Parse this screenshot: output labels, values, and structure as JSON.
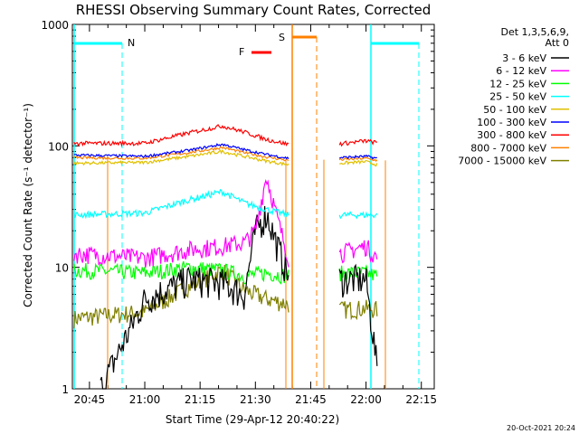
{
  "chart_data": {
    "type": "line",
    "title": "RHESSI Observing Summary Count Rates, Corrected",
    "xlabel": "Start Time (29-Apr-12 20:40:22)",
    "ylabel": "Corrected Count Rate (s⁻¹ detector⁻¹)",
    "yscale": "log",
    "ylim": [
      1,
      1000
    ],
    "xlim": [
      "20:40:22",
      "22:18:30"
    ],
    "x_ticks": [
      "20:45",
      "21:00",
      "21:15",
      "21:30",
      "21:45",
      "22:00",
      "22:15"
    ],
    "y_ticks": [
      "1",
      "10",
      "100",
      "1000"
    ],
    "legend_title": [
      "Det 1,3,5,6,9,",
      "Att 0"
    ],
    "legend_position": "right",
    "footer_date": "20-Oct-2021 20:24",
    "markers": [
      {
        "label": "N",
        "color": "#00ffff"
      },
      {
        "label": "F",
        "color": "#ff0000"
      },
      {
        "label": "S",
        "color": "#ff8000"
      }
    ],
    "series": [
      {
        "name": "3 - 6 keV",
        "color": "#000000",
        "values_seg1": [
          [
            20.8,
            1.0
          ],
          [
            21.0,
            5.5
          ],
          [
            21.2,
            8.0
          ],
          [
            21.35,
            7.5
          ],
          [
            21.45,
            6.0
          ],
          [
            21.5,
            20.0
          ],
          [
            21.55,
            28.0
          ],
          [
            21.6,
            15.0
          ],
          [
            21.65,
            8.5
          ]
        ],
        "values_seg2": [
          [
            21.88,
            8.0
          ],
          [
            22.0,
            8.0
          ],
          [
            22.05,
            1.5
          ]
        ]
      },
      {
        "name": "6 - 12 keV",
        "color": "#ff00ff",
        "values_seg1": [
          [
            20.68,
            13.0
          ],
          [
            21.0,
            12.0
          ],
          [
            21.2,
            14.0
          ],
          [
            21.35,
            15.0
          ],
          [
            21.45,
            16.0
          ],
          [
            21.5,
            20.0
          ],
          [
            21.55,
            57.0
          ],
          [
            21.6,
            25.0
          ],
          [
            21.65,
            12.0
          ]
        ],
        "values_seg2": [
          [
            21.88,
            13.0
          ],
          [
            22.0,
            15.0
          ],
          [
            22.05,
            12.0
          ]
        ]
      },
      {
        "name": "12 - 25 keV",
        "color": "#00ff00",
        "values_seg1": [
          [
            20.68,
            9.5
          ],
          [
            21.0,
            9.0
          ],
          [
            21.2,
            10.0
          ],
          [
            21.35,
            9.5
          ],
          [
            21.45,
            8.5
          ],
          [
            21.55,
            9.0
          ],
          [
            21.65,
            8.5
          ]
        ],
        "values_seg2": [
          [
            21.88,
            9.0
          ],
          [
            22.0,
            9.0
          ],
          [
            22.05,
            8.5
          ]
        ]
      },
      {
        "name": "25 - 50 keV",
        "color": "#00ffff",
        "values_seg1": [
          [
            20.68,
            27.0
          ],
          [
            21.0,
            28.0
          ],
          [
            21.2,
            36.0
          ],
          [
            21.35,
            42.0
          ],
          [
            21.45,
            34.0
          ],
          [
            21.55,
            30.0
          ],
          [
            21.65,
            27.0
          ]
        ],
        "values_seg2": [
          [
            21.88,
            27.0
          ],
          [
            22.0,
            27.0
          ],
          [
            22.05,
            27.0
          ]
        ]
      },
      {
        "name": "50 - 100 keV",
        "color": "#e0c000",
        "values_seg1": [
          [
            20.68,
            72.0
          ],
          [
            21.0,
            73.0
          ],
          [
            21.2,
            82.0
          ],
          [
            21.35,
            90.0
          ],
          [
            21.45,
            82.0
          ],
          [
            21.55,
            75.0
          ],
          [
            21.65,
            70.0
          ]
        ],
        "values_seg2": [
          [
            21.88,
            72.0
          ],
          [
            22.0,
            74.0
          ],
          [
            22.05,
            70.0
          ]
        ]
      },
      {
        "name": "100 - 300 keV",
        "color": "#0000ff",
        "values_seg1": [
          [
            20.68,
            84.0
          ],
          [
            21.0,
            82.0
          ],
          [
            21.2,
            92.0
          ],
          [
            21.35,
            103.0
          ],
          [
            21.45,
            93.0
          ],
          [
            21.55,
            85.0
          ],
          [
            21.65,
            79.0
          ]
        ],
        "values_seg2": [
          [
            21.88,
            80.0
          ],
          [
            22.0,
            82.0
          ],
          [
            22.05,
            79.0
          ]
        ]
      },
      {
        "name": "300 - 800 keV",
        "color": "#ff0000",
        "values_seg1": [
          [
            20.68,
            105.0
          ],
          [
            21.0,
            105.0
          ],
          [
            21.2,
            128.0
          ],
          [
            21.35,
            146.0
          ],
          [
            21.45,
            130.0
          ],
          [
            21.55,
            113.0
          ],
          [
            21.65,
            103.0
          ]
        ],
        "values_seg2": [
          [
            21.88,
            104.0
          ],
          [
            22.0,
            110.0
          ],
          [
            22.05,
            106.0
          ]
        ]
      },
      {
        "name": "800 - 7000 keV",
        "color": "#ff8000",
        "values_seg1": [
          [
            20.68,
            80.0
          ],
          [
            21.0,
            79.0
          ],
          [
            21.2,
            88.0
          ],
          [
            21.35,
            97.0
          ],
          [
            21.45,
            88.0
          ],
          [
            21.55,
            81.0
          ],
          [
            21.65,
            76.0
          ]
        ],
        "values_seg2": [
          [
            21.88,
            77.0
          ],
          [
            22.0,
            79.0
          ],
          [
            22.05,
            76.0
          ]
        ]
      },
      {
        "name": "7000 - 15000 keV",
        "color": "#808000",
        "values_seg1": [
          [
            20.68,
            3.8
          ],
          [
            21.0,
            4.3
          ],
          [
            21.2,
            7.0
          ],
          [
            21.35,
            9.5
          ],
          [
            21.45,
            6.5
          ],
          [
            21.55,
            5.5
          ],
          [
            21.65,
            5.0
          ]
        ],
        "values_seg2": [
          [
            21.88,
            4.5
          ],
          [
            22.0,
            4.6
          ],
          [
            22.05,
            4.5
          ]
        ]
      }
    ]
  }
}
